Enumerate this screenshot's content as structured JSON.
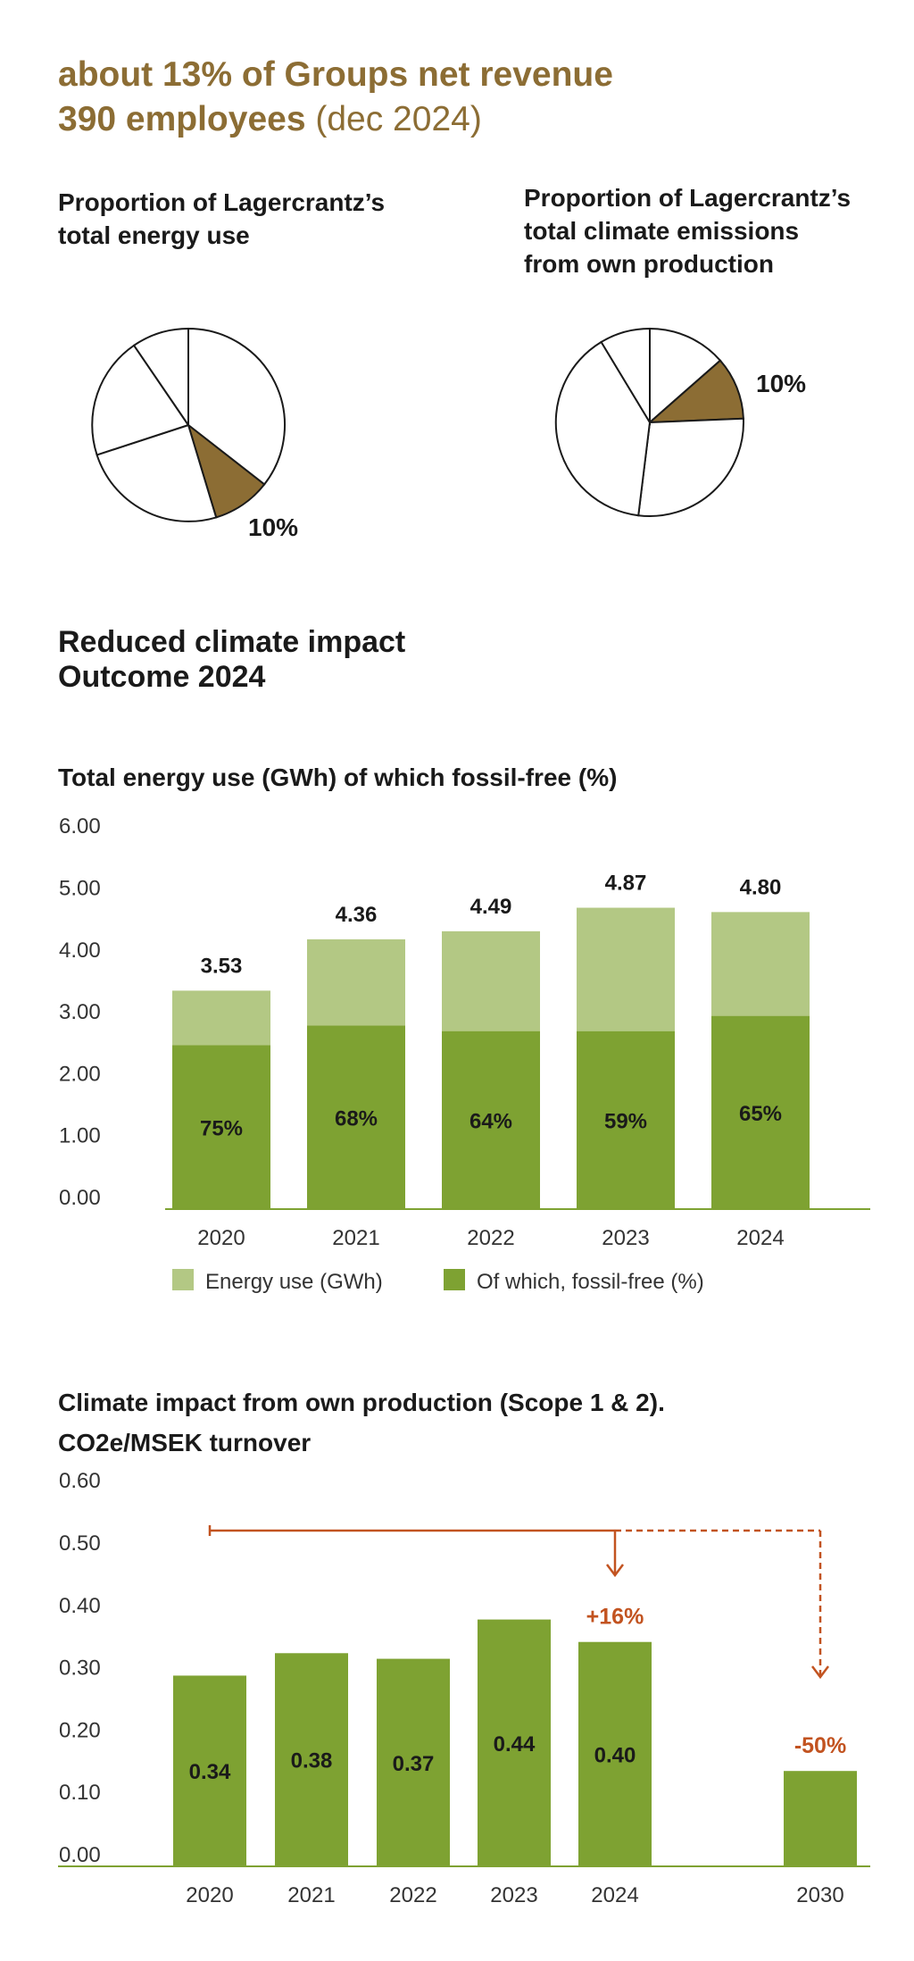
{
  "header": {
    "line1": "about 13% of Groups net revenue",
    "line2_bold": "390 employees",
    "line2_light": "(dec 2024)"
  },
  "pies": [
    {
      "title": [
        "Proportion of Lagercrantz’s",
        "total energy use"
      ],
      "highlight_label": "10%",
      "highlight_color": "#8c6d34"
    },
    {
      "title": [
        "Proportion of Lagercrantz’s",
        "total climate emissions",
        "from own production"
      ],
      "highlight_label": "10%",
      "highlight_color": "#8c6d34"
    }
  ],
  "section": {
    "title_line1": "Reduced climate impact",
    "title_line2": "Outcome 2024"
  },
  "chart_data": [
    {
      "type": "bar",
      "title": "Total energy use (GWh) of which fossil-free (%)",
      "categories": [
        "2020",
        "2021",
        "2022",
        "2023",
        "2024"
      ],
      "series": [
        {
          "name": "Energy use (GWh)",
          "values": [
            3.53,
            4.36,
            4.49,
            4.87,
            4.8
          ],
          "color": "#b3c884"
        },
        {
          "name": "Of which, fossil-free (%)",
          "values": [
            75,
            68,
            64,
            59,
            65
          ],
          "color": "#7ea232"
        }
      ],
      "total_labels": [
        "3.53",
        "4.36",
        "4.49",
        "4.87",
        "4.80"
      ],
      "fossil_labels": [
        "75%",
        "68%",
        "64%",
        "59%",
        "65%"
      ],
      "y_ticks": [
        "0.00",
        "1.00",
        "2.00",
        "3.00",
        "4.00",
        "5.00",
        "6.00"
      ],
      "ylim": [
        0,
        6
      ],
      "legend_position": "bottom",
      "grid": false
    },
    {
      "type": "bar",
      "title_line1": "Climate impact from own production (Scope 1 & 2).",
      "title_line2": "CO2e/MSEK turnover",
      "categories": [
        "2020",
        "2021",
        "2022",
        "2023",
        "2024",
        "2030"
      ],
      "values": [
        0.34,
        0.38,
        0.37,
        0.44,
        0.4,
        0.17
      ],
      "value_labels": [
        "0.34",
        "0.38",
        "0.37",
        "0.44",
        "0.40",
        ""
      ],
      "y_ticks": [
        "0.00",
        "0.10",
        "0.20",
        "0.30",
        "0.40",
        "0.50",
        "0.60"
      ],
      "ylim": [
        0,
        0.6
      ],
      "bar_color": "#7ea232",
      "annotations": [
        {
          "text": "+16%",
          "category": "2024",
          "color": "#c25320"
        },
        {
          "text": "-50%",
          "category": "2030",
          "color": "#c25320"
        }
      ],
      "grid": false
    }
  ]
}
